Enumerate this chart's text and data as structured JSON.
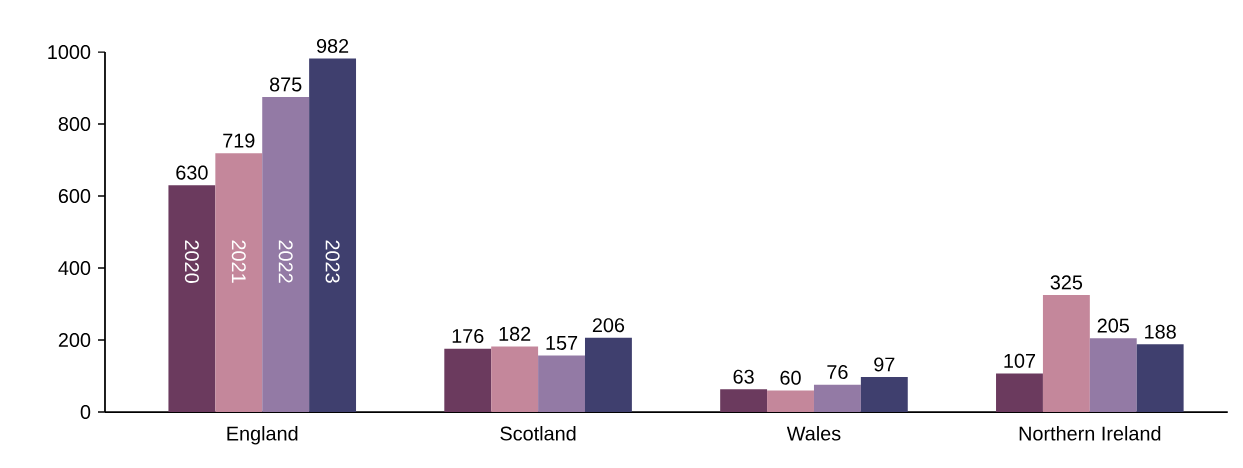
{
  "chart_data": {
    "type": "bar",
    "categories": [
      "England",
      "Scotland",
      "Wales",
      "Northern Ireland"
    ],
    "series": [
      {
        "name": "2020",
        "color": "#6b3a5e",
        "values": [
          630,
          176,
          63,
          107
        ]
      },
      {
        "name": "2021",
        "color": "#c4879b",
        "values": [
          719,
          182,
          60,
          325
        ]
      },
      {
        "name": "2022",
        "color": "#937aa5",
        "values": [
          875,
          157,
          76,
          205
        ]
      },
      {
        "name": "2023",
        "color": "#3f3f6e",
        "values": [
          982,
          206,
          97,
          188
        ]
      }
    ],
    "ylim": [
      0,
      1000
    ],
    "yticks": [
      0,
      200,
      400,
      600,
      800,
      1000
    ],
    "data_labels": true
  }
}
